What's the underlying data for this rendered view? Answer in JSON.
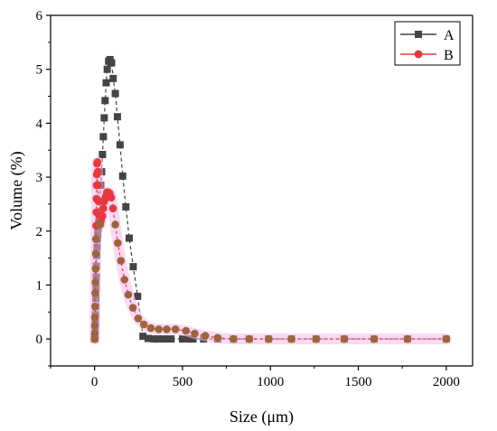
{
  "chart_data": {
    "type": "line",
    "xlabel": "Size (μm)",
    "ylabel": "Volume (%)",
    "xlim": [
      -250,
      2150
    ],
    "ylim": [
      -0.5,
      6
    ],
    "xticks": [
      0,
      500,
      1000,
      1500,
      2000
    ],
    "yticks": [
      0,
      1,
      2,
      3,
      4,
      5,
      6
    ],
    "legend_placement": "top-right",
    "series": [
      {
        "name": "A",
        "color": "#444444",
        "marker": "square",
        "x": [
          0.5,
          1,
          2,
          3,
          4,
          5,
          6,
          7,
          8,
          9,
          10,
          12,
          14,
          16,
          18,
          20,
          23,
          26,
          30,
          35,
          40,
          45,
          50,
          55,
          60,
          66,
          72,
          80,
          88,
          97,
          106,
          118,
          130,
          145,
          160,
          178,
          197,
          220,
          245,
          275,
          305,
          335,
          360,
          395,
          435,
          500,
          540,
          560,
          620,
          700,
          790,
          880,
          990,
          1120,
          1260,
          1420,
          1590,
          1780,
          2000
        ],
        "y": [
          0,
          0.05,
          0.1,
          0.18,
          0.3,
          0.45,
          0.6,
          0.75,
          0.95,
          1.15,
          1.35,
          1.55,
          1.7,
          1.85,
          1.95,
          2.05,
          2.15,
          2.3,
          2.55,
          2.85,
          3.1,
          3.42,
          3.75,
          4.1,
          4.42,
          4.75,
          5.0,
          5.15,
          5.18,
          5.12,
          4.83,
          4.55,
          4.12,
          3.6,
          3.02,
          2.45,
          1.87,
          1.34,
          0.79,
          0.05,
          0.01,
          0,
          0,
          0,
          0,
          0,
          0,
          0,
          0,
          0,
          0,
          0,
          0,
          0,
          0,
          0,
          0,
          0,
          0
        ]
      },
      {
        "name": "B",
        "color": "#e8383d",
        "marker": "circle",
        "x": [
          0.5,
          1,
          1.5,
          2,
          3,
          4,
          5,
          6,
          7,
          8,
          9,
          10,
          11,
          12,
          13,
          14,
          16,
          18,
          20,
          22,
          25,
          28,
          32,
          36,
          40,
          45,
          50,
          55,
          60,
          65,
          70,
          78,
          86,
          95,
          105,
          118,
          132,
          150,
          170,
          192,
          218,
          248,
          280,
          320,
          365,
          410,
          460,
          520,
          570,
          630,
          700,
          790,
          880,
          990,
          1120,
          1260,
          1420,
          1590,
          1780,
          2000
        ],
        "y": [
          0,
          0.1,
          0.25,
          0.4,
          0.6,
          0.85,
          1.05,
          1.3,
          1.58,
          1.85,
          2.1,
          2.35,
          2.6,
          2.85,
          3.05,
          3.25,
          3.28,
          3.1,
          2.85,
          2.55,
          2.3,
          2.15,
          2.12,
          2.18,
          2.25,
          2.28,
          2.42,
          2.55,
          2.6,
          2.65,
          2.72,
          2.72,
          2.7,
          2.62,
          2.42,
          2.12,
          1.78,
          1.45,
          1.1,
          0.82,
          0.58,
          0.38,
          0.27,
          0.2,
          0.18,
          0.18,
          0.18,
          0.15,
          0.1,
          0.06,
          0.02,
          0,
          0,
          0,
          0,
          0,
          0,
          0,
          0,
          0
        ]
      }
    ]
  }
}
